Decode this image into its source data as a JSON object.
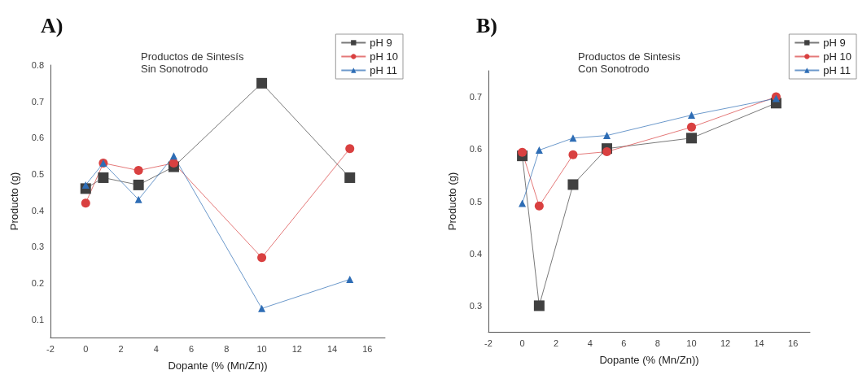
{
  "chart_data": [
    {
      "type": "line",
      "title": "Productos de Sintesís",
      "subtitle": "Sin Sonotrodo",
      "xlabel": "Dopante (% (Mn/Zn))",
      "ylabel": "Producto (g)",
      "annotations": [
        "A)"
      ],
      "x": [
        0,
        1,
        3,
        5,
        10,
        15
      ],
      "series": [
        {
          "name": "pH 9",
          "color": "#404040",
          "marker": "square",
          "values": [
            0.46,
            0.49,
            0.47,
            0.52,
            0.75,
            0.49
          ]
        },
        {
          "name": "pH 10",
          "color": "#d94040",
          "marker": "circle",
          "values": [
            0.42,
            0.53,
            0.51,
            0.53,
            0.27,
            0.57
          ]
        },
        {
          "name": "pH 11",
          "color": "#2e6db5",
          "marker": "triangle",
          "values": [
            0.47,
            0.53,
            0.43,
            0.55,
            0.13,
            0.21
          ]
        }
      ],
      "xlim": [
        -2,
        17
      ],
      "xticks": [
        -2,
        0,
        2,
        4,
        6,
        8,
        10,
        12,
        14,
        16
      ],
      "ylim": [
        0.05,
        0.8
      ],
      "yticks": [
        0.1,
        0.2,
        0.3,
        0.4,
        0.5,
        0.6,
        0.7,
        0.8
      ],
      "grid": false,
      "legend": "top right",
      "line_style": "solid"
    },
    {
      "type": "line",
      "title": "Productos de Sintesis",
      "subtitle": "Con Sonotrodo",
      "xlabel": "Dopante (% (Mn/Zn))",
      "ylabel": "Producto (g)",
      "annotations": [
        "B)"
      ],
      "x": [
        0,
        1,
        3,
        5,
        10,
        15
      ],
      "series": [
        {
          "name": "pH 9",
          "color": "#404040",
          "marker": "square",
          "values": [
            0.587,
            0.3,
            0.532,
            0.601,
            0.621,
            0.688
          ]
        },
        {
          "name": "pH 10",
          "color": "#d94040",
          "marker": "circle",
          "values": [
            0.594,
            0.491,
            0.589,
            0.595,
            0.642,
            0.7
          ]
        },
        {
          "name": "pH 11",
          "color": "#2e6db5",
          "marker": "triangle",
          "values": [
            0.496,
            0.598,
            0.621,
            0.626,
            0.665,
            0.697
          ]
        }
      ],
      "xlim": [
        -2,
        17
      ],
      "xticks": [
        -2,
        0,
        2,
        4,
        6,
        8,
        10,
        12,
        14,
        16
      ],
      "ylim": [
        0.25,
        0.75
      ],
      "yticks": [
        0.3,
        0.4,
        0.5,
        0.6,
        0.7
      ],
      "grid": false,
      "legend": "top right",
      "line_style": "solid"
    }
  ]
}
